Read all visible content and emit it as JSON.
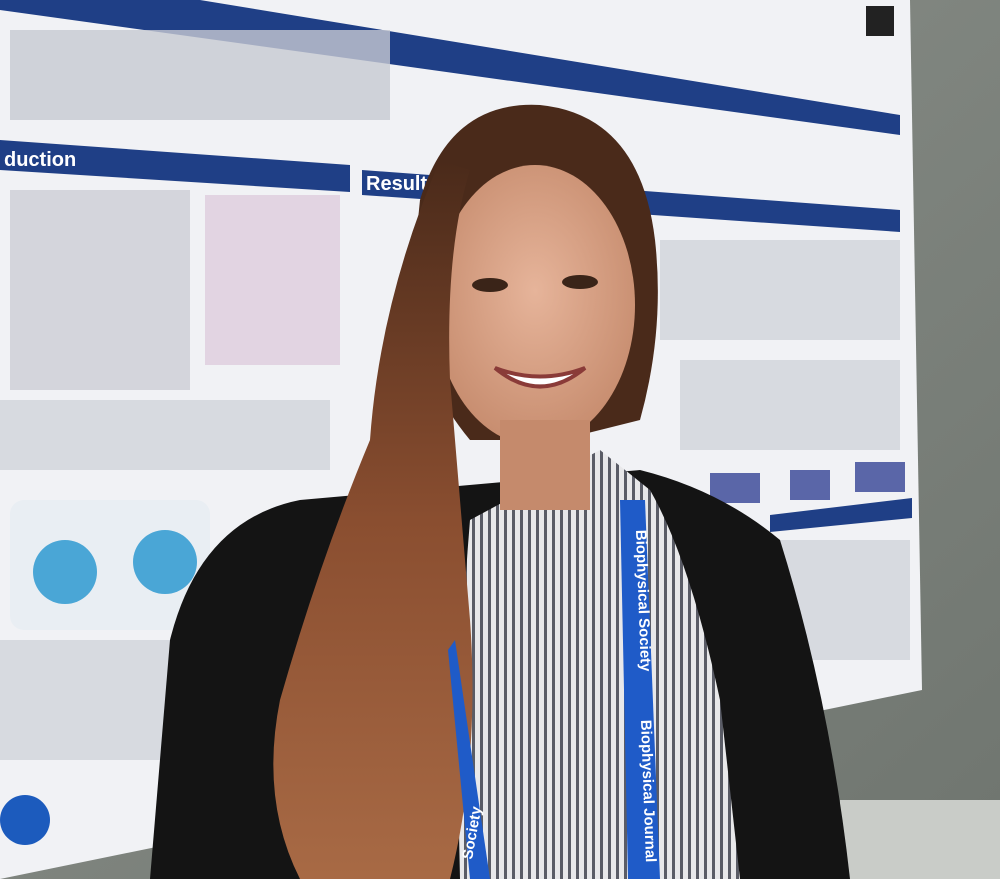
{
  "poster": {
    "sections": [
      "duction",
      "Results"
    ]
  },
  "lanyard": {
    "left": "Society",
    "right_upper": "Biophysical Society",
    "right_lower": "Biophysical Journal"
  }
}
